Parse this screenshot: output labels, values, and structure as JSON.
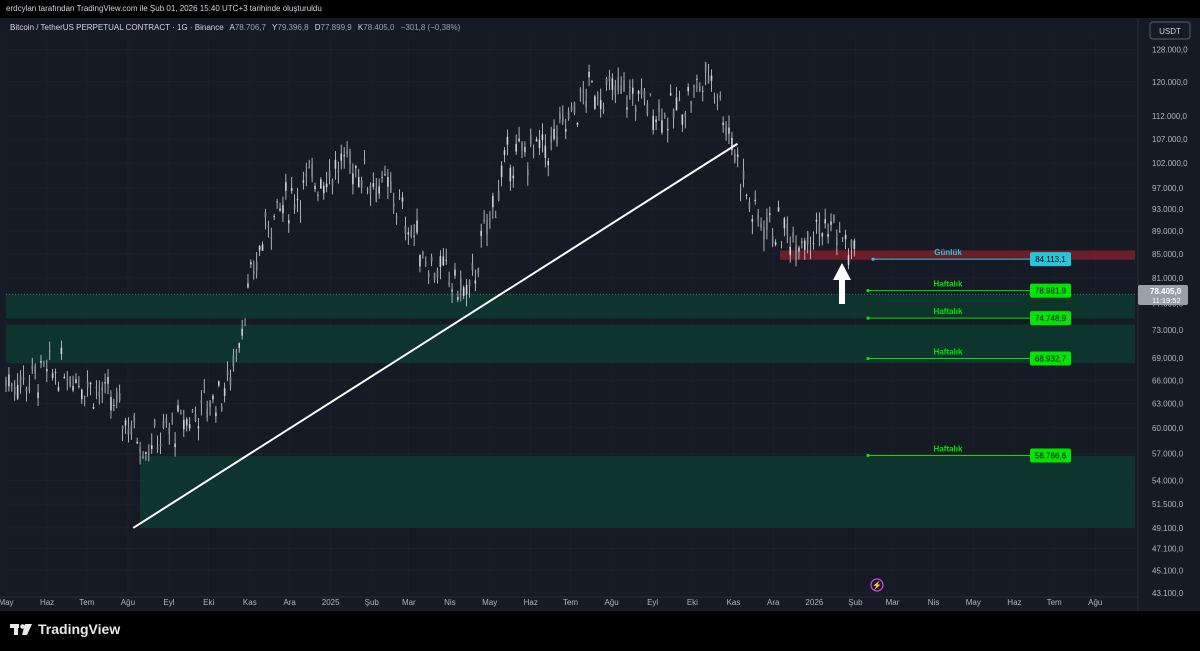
{
  "top_bar": {
    "text": "erdcylan tarafından TradingView.com ile Şub 01, 2026 15:40 UTC+3 tarihinde oluşturuldu"
  },
  "symbol_line": {
    "name": "Bitcoin / TetherUS PERPETUAL CONTRACT · 1G · Binance",
    "o_label": "A",
    "o_value": "78.706,7",
    "h_label": "Y",
    "h_value": "79.396,8",
    "l_label": "D",
    "l_value": "77.899,9",
    "c_label": "K",
    "c_value": "78.405,0",
    "change": "−301,8 (−0,38%)"
  },
  "currency_button": "USDT",
  "brand": {
    "name": "TradingView",
    "logo_icon": "tradingview-logo-icon"
  },
  "current_price": {
    "value": "78.405,0",
    "countdown": "11:19:52",
    "color": "#9aa0aa"
  },
  "y_axis_ticks": [
    "128.000,0",
    "120.000,0",
    "112.000,0",
    "107.000,0",
    "102.000,0",
    "97.000,0",
    "93.000,0",
    "89.000,0",
    "85.000,0",
    "81.000,0",
    "77.000,0",
    "73.000,0",
    "69.000,0",
    "66.000,0",
    "63.000,0",
    "60.000,0",
    "57.000,0",
    "54.000,0",
    "51.500,0",
    "49.100,0",
    "47.100,0",
    "45.100,0",
    "43.100,0"
  ],
  "x_axis_ticks": [
    "May",
    "Haz",
    "Tem",
    "Ağu",
    "Eyl",
    "Eki",
    "Kas",
    "Ara",
    "2025",
    "Şub",
    "Mar",
    "Nis",
    "May",
    "Haz",
    "Tem",
    "Ağu",
    "Eyl",
    "Eki",
    "Kas",
    "Ara",
    "2026",
    "Şub",
    "Mar",
    "Nis",
    "May",
    "Haz",
    "Tem",
    "Ağu"
  ],
  "levels": [
    {
      "label": "Günlük",
      "price": "84.113,1",
      "color": "#26c6da"
    },
    {
      "label": "Haftalık",
      "price": "78.981,9",
      "color": "#00e600"
    },
    {
      "label": "Haftalık",
      "price": "74.748,9",
      "color": "#00e600"
    },
    {
      "label": "Haftalık",
      "price": "68.932,7",
      "color": "#00e600"
    },
    {
      "label": "Haftalık",
      "price": "56.766,6",
      "color": "#00e600"
    }
  ],
  "chart_data": {
    "type": "line",
    "title": "Bitcoin / TetherUS PERPETUAL CONTRACT · 1G · Binance",
    "x": [
      "2024-05",
      "2024-06",
      "2024-07",
      "2024-08",
      "2024-09",
      "2024-10",
      "2024-11",
      "2024-12",
      "2025-01",
      "2025-02",
      "2025-03",
      "2025-04",
      "2025-05",
      "2025-06",
      "2025-07",
      "2025-08",
      "2025-09",
      "2025-10",
      "2025-11",
      "2025-12",
      "2026-01",
      "2026-02"
    ],
    "series": [
      {
        "values": [
          66000,
          67500,
          64000,
          58000,
          61000,
          65000,
          91000,
          98000,
          102000,
          96000,
          84000,
          78000,
          103000,
          105000,
          118000,
          117000,
          112000,
          122000,
          92000,
          88000,
          90000,
          78405
        ]
      }
    ],
    "ylim": [
      43100,
      131000
    ],
    "y_scale": "log",
    "trendline": [
      [
        "2024-08-05",
        49100
      ],
      [
        "2025-11-04",
        106000
      ]
    ],
    "zones": [
      {
        "from": 84000,
        "to": 85600,
        "color": "#7a1f2b"
      },
      {
        "from": 74700,
        "to": 78400,
        "color": "#0d3a30"
      },
      {
        "from": 68300,
        "to": 73800,
        "color": "#0d3a30"
      },
      {
        "from": 49100,
        "to": 56700,
        "color": "#0d3a30"
      }
    ],
    "annotations": [
      "Günlük",
      "Haftalık",
      "Haftalık",
      "Haftalık",
      "Haftalık"
    ],
    "grid": true,
    "colors": {
      "candle": "#d1d4dc",
      "trendline": "#ffffff",
      "support_zone": "#0d3a30",
      "resistance_zone": "#7a1f2b",
      "grid": "#1f2330"
    }
  }
}
